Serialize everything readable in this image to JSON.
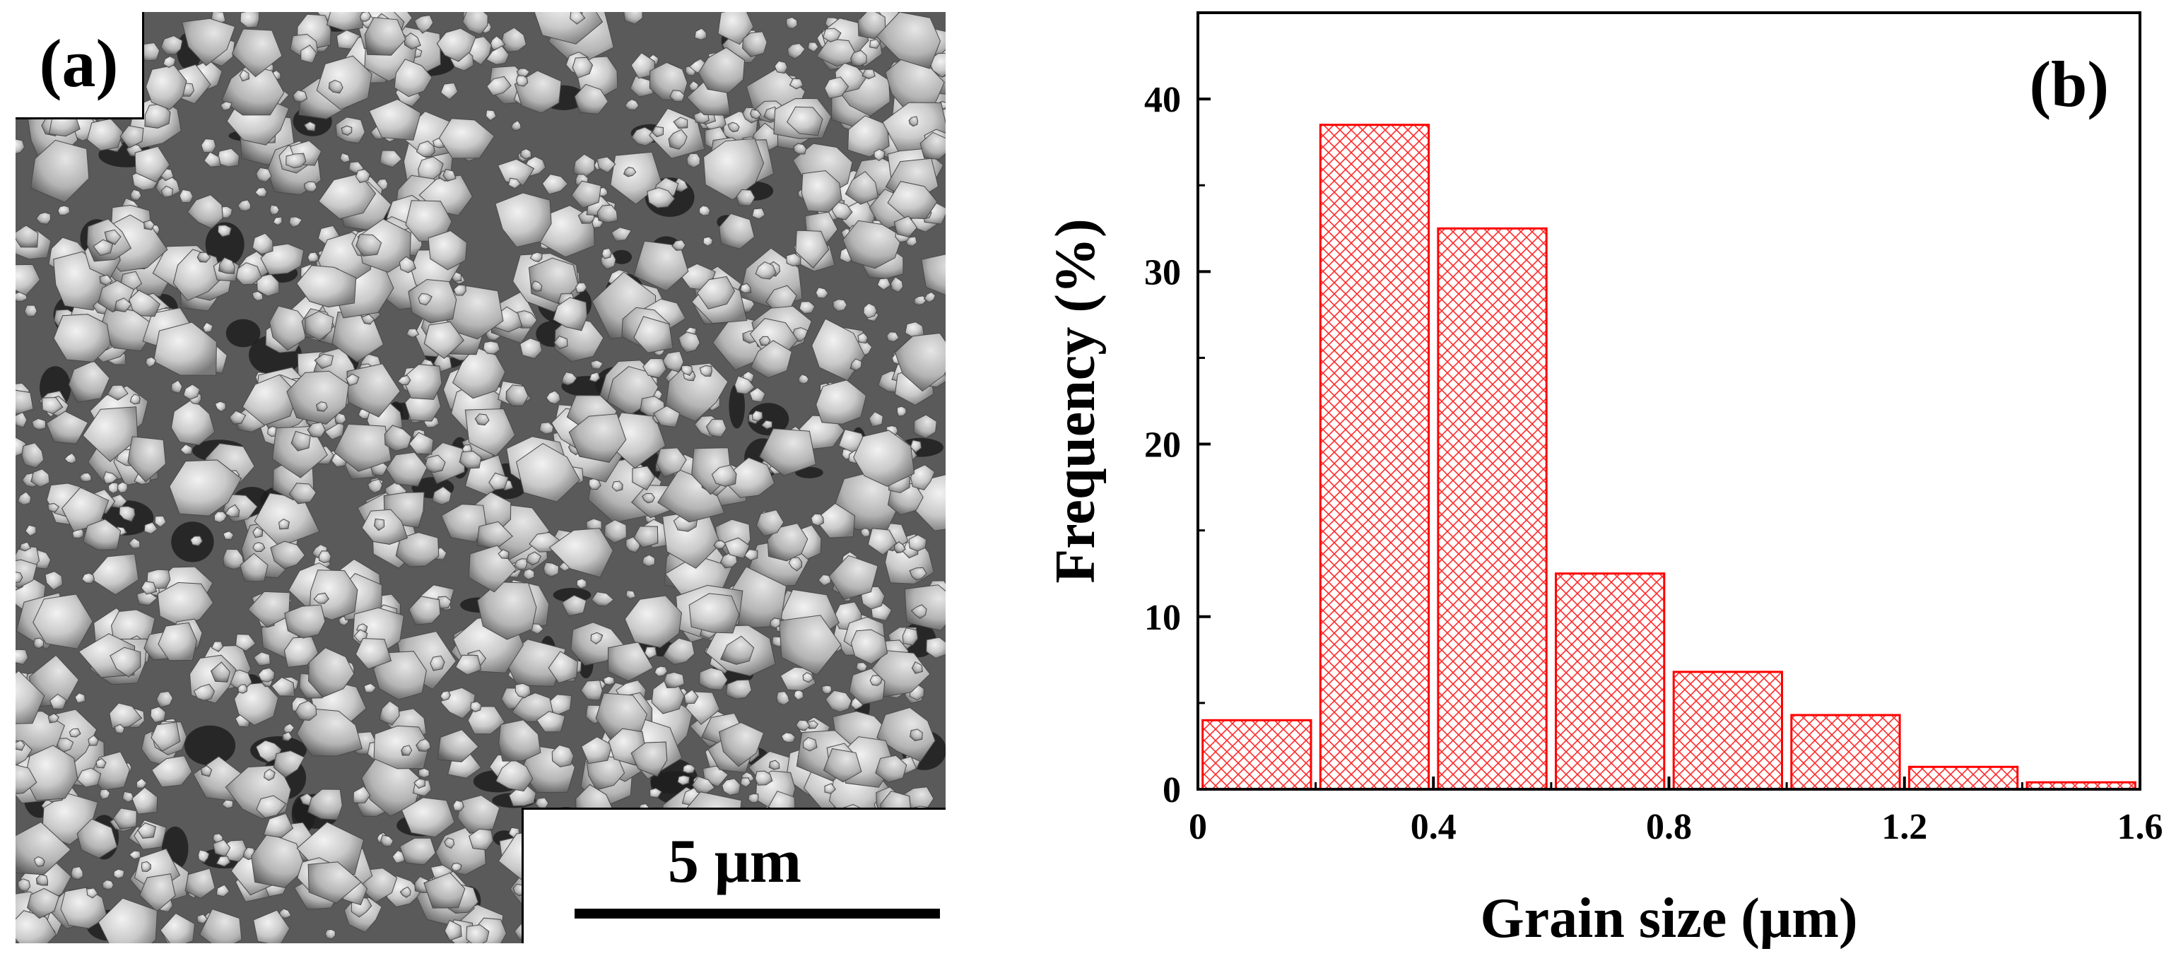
{
  "panel_a": {
    "label": "(a)",
    "scale_bar_label": "5 μm"
  },
  "colors": {
    "bar_stroke": "#ff0000",
    "hatch": "#ff2a2a",
    "axis": "#000000"
  },
  "chart_data": {
    "type": "bar",
    "panel_label": "(b)",
    "title": "",
    "xlabel": "Grain size (μm)",
    "ylabel": "Frequency (%)",
    "xlim": [
      0,
      1.6
    ],
    "ylim": [
      0,
      45
    ],
    "xticks": [
      "0",
      "0.4",
      "0.8",
      "1.2",
      "1.6"
    ],
    "xtick_values": [
      0,
      0.4,
      0.8,
      1.2,
      1.6
    ],
    "yticks": [
      "0",
      "10",
      "20",
      "30",
      "40"
    ],
    "ytick_values": [
      0,
      10,
      20,
      30,
      40
    ],
    "bin_width": 0.2,
    "bins": [
      {
        "x": 0.1,
        "value": 4.0
      },
      {
        "x": 0.3,
        "value": 38.5
      },
      {
        "x": 0.5,
        "value": 32.5
      },
      {
        "x": 0.7,
        "value": 12.5
      },
      {
        "x": 0.9,
        "value": 6.8
      },
      {
        "x": 1.1,
        "value": 4.3
      },
      {
        "x": 1.3,
        "value": 1.3
      },
      {
        "x": 1.5,
        "value": 0.4
      }
    ],
    "fill_pattern": "crosshatch",
    "grid": false,
    "legend": "none"
  }
}
